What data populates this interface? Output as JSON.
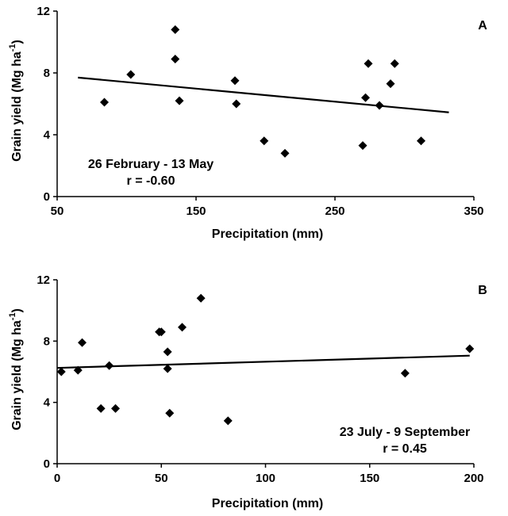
{
  "chart_data": [
    {
      "type": "scatter",
      "panel_label": "A",
      "xlabel": "Precipitation (mm)",
      "ylabel": "Grain yield (Mg ha-1)",
      "xlim": [
        50,
        350
      ],
      "ylim": [
        0,
        12
      ],
      "xticks": [
        50,
        150,
        250,
        350
      ],
      "yticks": [
        0,
        4,
        8,
        12
      ],
      "annotation": [
        "26 February - 13 May",
        "r = -0.60"
      ],
      "points": [
        {
          "x": 84,
          "y": 6.1
        },
        {
          "x": 103,
          "y": 7.9
        },
        {
          "x": 135,
          "y": 10.8
        },
        {
          "x": 135,
          "y": 8.9
        },
        {
          "x": 138,
          "y": 6.2
        },
        {
          "x": 178,
          "y": 7.5
        },
        {
          "x": 179,
          "y": 6.0
        },
        {
          "x": 199,
          "y": 3.6
        },
        {
          "x": 214,
          "y": 2.8
        },
        {
          "x": 270,
          "y": 3.3
        },
        {
          "x": 272,
          "y": 6.4
        },
        {
          "x": 274,
          "y": 8.6
        },
        {
          "x": 282,
          "y": 5.9
        },
        {
          "x": 290,
          "y": 7.3
        },
        {
          "x": 293,
          "y": 8.6
        },
        {
          "x": 312,
          "y": 3.6
        }
      ],
      "trendline": [
        {
          "x": 65,
          "y": 7.7
        },
        {
          "x": 332,
          "y": 5.45
        }
      ],
      "grid": false
    },
    {
      "type": "scatter",
      "panel_label": "B",
      "xlabel": "Precipitation (mm)",
      "ylabel": "Grain yield (Mg ha-1)",
      "xlim": [
        0,
        200
      ],
      "ylim": [
        0,
        12
      ],
      "xticks": [
        0,
        50,
        100,
        150,
        200
      ],
      "yticks": [
        0,
        4,
        8,
        12
      ],
      "annotation": [
        "23 July - 9 September",
        "r = 0.45"
      ],
      "points": [
        {
          "x": 2,
          "y": 6.0
        },
        {
          "x": 10,
          "y": 6.1
        },
        {
          "x": 12,
          "y": 7.9
        },
        {
          "x": 21,
          "y": 3.6
        },
        {
          "x": 25,
          "y": 6.4
        },
        {
          "x": 28,
          "y": 3.6
        },
        {
          "x": 49,
          "y": 8.6
        },
        {
          "x": 50,
          "y": 8.6
        },
        {
          "x": 53,
          "y": 7.3
        },
        {
          "x": 53,
          "y": 6.2
        },
        {
          "x": 54,
          "y": 3.3
        },
        {
          "x": 60,
          "y": 8.9
        },
        {
          "x": 69,
          "y": 10.8
        },
        {
          "x": 82,
          "y": 2.8
        },
        {
          "x": 167,
          "y": 5.9
        },
        {
          "x": 198,
          "y": 7.5
        }
      ],
      "trendline": [
        {
          "x": 0,
          "y": 6.25
        },
        {
          "x": 198,
          "y": 7.05
        }
      ],
      "grid": false
    }
  ]
}
